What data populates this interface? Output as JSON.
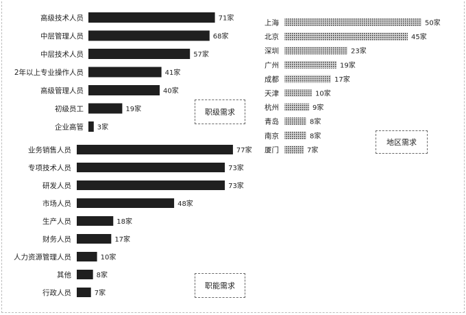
{
  "chart_data": [
    {
      "type": "bar",
      "orientation": "horizontal",
      "title": "职级需求",
      "categories": [
        "高级技术人员",
        "中层管理人员",
        "中层技术人员",
        "2年以上专业操作人员",
        "高级管理人员",
        "初级员工",
        "企业高管"
      ],
      "values": [
        71,
        68,
        57,
        41,
        40,
        19,
        3
      ],
      "value_labels": [
        "71家",
        "68家",
        "57家",
        "41家",
        "40家",
        "19家",
        "3家"
      ],
      "bar_color": "#1f1f1f"
    },
    {
      "type": "bar",
      "orientation": "horizontal",
      "title": "职能需求",
      "categories": [
        "业务销售人员",
        "专项技术人员",
        "研发人员",
        "市场人员",
        "生产人员",
        "财务人员",
        "人力资源管理人员",
        "其他",
        "行政人员"
      ],
      "values": [
        77,
        73,
        73,
        48,
        18,
        17,
        10,
        8,
        7
      ],
      "value_labels": [
        "77家",
        "73家",
        "73家",
        "48家",
        "18家",
        "17家",
        "10家",
        "8家",
        "7家"
      ],
      "bar_color": "#1f1f1f"
    },
    {
      "type": "bar",
      "orientation": "horizontal",
      "title": "地区需求",
      "categories": [
        "上海",
        "北京",
        "深圳",
        "广州",
        "成都",
        "天津",
        "杭州",
        "青岛",
        "南京",
        "厦门"
      ],
      "values": [
        50,
        45,
        23,
        19,
        17,
        10,
        9,
        8,
        8,
        7
      ],
      "value_labels": [
        "50家",
        "45家",
        "23家",
        "19家",
        "17家",
        "10家",
        "9家",
        "8家",
        "8家",
        "7家"
      ],
      "bar_color": "#8a8a8a"
    }
  ]
}
